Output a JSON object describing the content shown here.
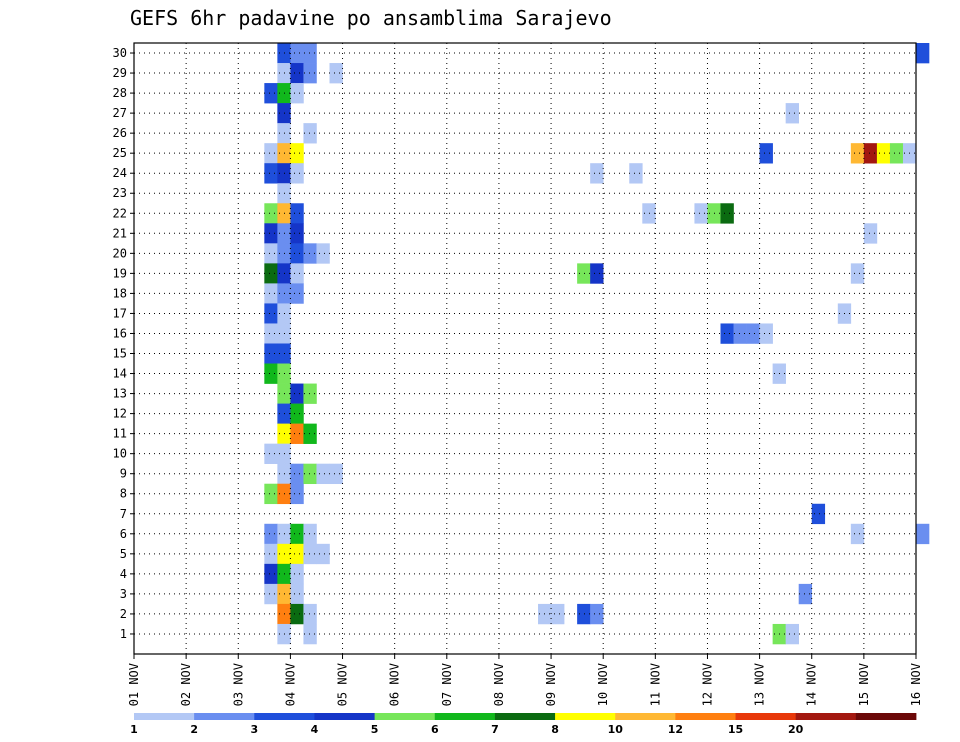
{
  "chart_data": {
    "type": "heatmap",
    "title": "GEFS 6hr padavine po ansamblima Sarajevo",
    "xlabel": "",
    "ylabel": "",
    "x_ticks": [
      "01 NOV",
      "02 NOV",
      "03 NOV",
      "04 NOV",
      "05 NOV",
      "06 NOV",
      "07 NOV",
      "08 NOV",
      "09 NOV",
      "10 NOV",
      "11 NOV",
      "12 NOV",
      "13 NOV",
      "14 NOV",
      "15 NOV",
      "16 NOV"
    ],
    "y_ticks": [
      "1",
      "2",
      "3",
      "4",
      "5",
      "6",
      "7",
      "8",
      "9",
      "10",
      "11",
      "12",
      "13",
      "14",
      "15",
      "16",
      "17",
      "18",
      "19",
      "20",
      "21",
      "22",
      "23",
      "24",
      "25",
      "26",
      "27",
      "28",
      "29",
      "30"
    ],
    "xlim_days": [
      1,
      16
    ],
    "ylim_members": [
      0,
      30
    ],
    "time_step_hours": 6,
    "grid": true,
    "colorbar": {
      "levels": [
        1,
        2,
        3,
        4,
        5,
        6,
        7,
        8,
        10,
        12,
        15,
        20
      ],
      "labels": [
        "1",
        "2",
        "3",
        "4",
        "5",
        "6",
        "7",
        "8",
        "10",
        "12",
        "15",
        "20"
      ],
      "colors": [
        "#b3c8f5",
        "#6a8ef0",
        "#1f4fdb",
        "#1535c8",
        "#77e65a",
        "#11b81c",
        "#0b6b11",
        "#ffff00",
        "#ffb833",
        "#ff7f10",
        "#e8380a",
        "#a31810",
        "#6b0808"
      ]
    },
    "cell_note": "cells: [ensemble_member, forecast_step_index (6h steps from 01 NOV 00z), precipitation_mm]",
    "cells": [
      [
        30,
        11,
        3.5
      ],
      [
        30,
        12,
        2.5
      ],
      [
        30,
        13,
        2.5
      ],
      [
        30,
        60,
        3.5
      ],
      [
        29,
        11,
        1.5
      ],
      [
        29,
        12,
        4.5
      ],
      [
        29,
        13,
        2.5
      ],
      [
        29,
        15,
        1.5
      ],
      [
        28,
        10,
        3.5
      ],
      [
        28,
        11,
        6.5
      ],
      [
        28,
        12,
        1.5
      ],
      [
        27,
        11,
        4.5
      ],
      [
        27,
        50,
        1.5
      ],
      [
        26,
        11,
        1.5
      ],
      [
        26,
        13,
        1.5
      ],
      [
        25,
        10,
        1.5
      ],
      [
        25,
        11,
        11
      ],
      [
        25,
        12,
        9
      ],
      [
        25,
        48,
        3.5
      ],
      [
        25,
        55,
        11
      ],
      [
        25,
        56,
        25
      ],
      [
        25,
        57,
        9
      ],
      [
        25,
        58,
        5.5
      ],
      [
        25,
        59,
        1.5
      ],
      [
        24,
        10,
        3.5
      ],
      [
        24,
        11,
        4.5
      ],
      [
        24,
        12,
        1.5
      ],
      [
        24,
        35,
        1.5
      ],
      [
        24,
        38,
        1.5
      ],
      [
        23,
        11,
        1.5
      ],
      [
        22,
        10,
        5.5
      ],
      [
        22,
        11,
        11
      ],
      [
        22,
        12,
        3.5
      ],
      [
        22,
        39,
        1.5
      ],
      [
        22,
        43,
        1.5
      ],
      [
        22,
        44,
        5.5
      ],
      [
        22,
        45,
        7.5
      ],
      [
        21,
        10,
        4.5
      ],
      [
        21,
        11,
        2.5
      ],
      [
        21,
        12,
        4.5
      ],
      [
        21,
        56,
        1.5
      ],
      [
        20,
        10,
        1.5
      ],
      [
        20,
        11,
        2.5
      ],
      [
        20,
        12,
        3.5
      ],
      [
        20,
        13,
        2.5
      ],
      [
        20,
        14,
        1.5
      ],
      [
        19,
        10,
        7.5
      ],
      [
        19,
        11,
        4.5
      ],
      [
        19,
        12,
        1.5
      ],
      [
        19,
        34,
        5.5
      ],
      [
        19,
        35,
        4.5
      ],
      [
        19,
        55,
        1.5
      ],
      [
        18,
        10,
        1.5
      ],
      [
        18,
        11,
        2.5
      ],
      [
        18,
        12,
        2.5
      ],
      [
        17,
        10,
        3.5
      ],
      [
        17,
        11,
        1.5
      ],
      [
        17,
        54,
        1.5
      ],
      [
        16,
        10,
        1.5
      ],
      [
        16,
        11,
        1.5
      ],
      [
        16,
        45,
        3.5
      ],
      [
        16,
        46,
        2.5
      ],
      [
        16,
        47,
        2.5
      ],
      [
        16,
        48,
        1.5
      ],
      [
        15,
        10,
        3.5
      ],
      [
        15,
        11,
        3.5
      ],
      [
        14,
        10,
        6.5
      ],
      [
        14,
        11,
        5.5
      ],
      [
        14,
        49,
        1.5
      ],
      [
        13,
        11,
        5.5
      ],
      [
        13,
        12,
        4.5
      ],
      [
        13,
        13,
        5.5
      ],
      [
        12,
        11,
        3.5
      ],
      [
        12,
        12,
        6.5
      ],
      [
        11,
        11,
        9
      ],
      [
        11,
        12,
        13
      ],
      [
        11,
        13,
        6.5
      ],
      [
        10,
        10,
        1.5
      ],
      [
        10,
        11,
        1.5
      ],
      [
        9,
        11,
        1.5
      ],
      [
        9,
        12,
        2.5
      ],
      [
        9,
        13,
        5.5
      ],
      [
        9,
        14,
        1.5
      ],
      [
        9,
        15,
        1.5
      ],
      [
        8,
        10,
        5.5
      ],
      [
        8,
        11,
        13
      ],
      [
        8,
        12,
        2.5
      ],
      [
        7,
        52,
        3.5
      ],
      [
        6,
        10,
        2.5
      ],
      [
        6,
        11,
        1.5
      ],
      [
        6,
        12,
        6.5
      ],
      [
        6,
        13,
        1.5
      ],
      [
        6,
        55,
        1.5
      ],
      [
        6,
        60,
        2.5
      ],
      [
        5,
        10,
        1.5
      ],
      [
        5,
        11,
        9
      ],
      [
        5,
        12,
        9
      ],
      [
        5,
        13,
        1.5
      ],
      [
        5,
        14,
        1.5
      ],
      [
        4,
        10,
        4.5
      ],
      [
        4,
        11,
        6.5
      ],
      [
        4,
        12,
        1.5
      ],
      [
        3,
        10,
        1.5
      ],
      [
        3,
        11,
        11
      ],
      [
        3,
        12,
        1.5
      ],
      [
        3,
        51,
        2.5
      ],
      [
        2,
        11,
        13
      ],
      [
        2,
        12,
        7.5
      ],
      [
        2,
        13,
        1.5
      ],
      [
        2,
        31,
        1.5
      ],
      [
        2,
        32,
        1.5
      ],
      [
        2,
        34,
        3.5
      ],
      [
        2,
        35,
        2.5
      ],
      [
        1,
        11,
        1.5
      ],
      [
        1,
        13,
        1.5
      ],
      [
        1,
        49,
        5.5
      ],
      [
        1,
        50,
        1.5
      ]
    ]
  }
}
